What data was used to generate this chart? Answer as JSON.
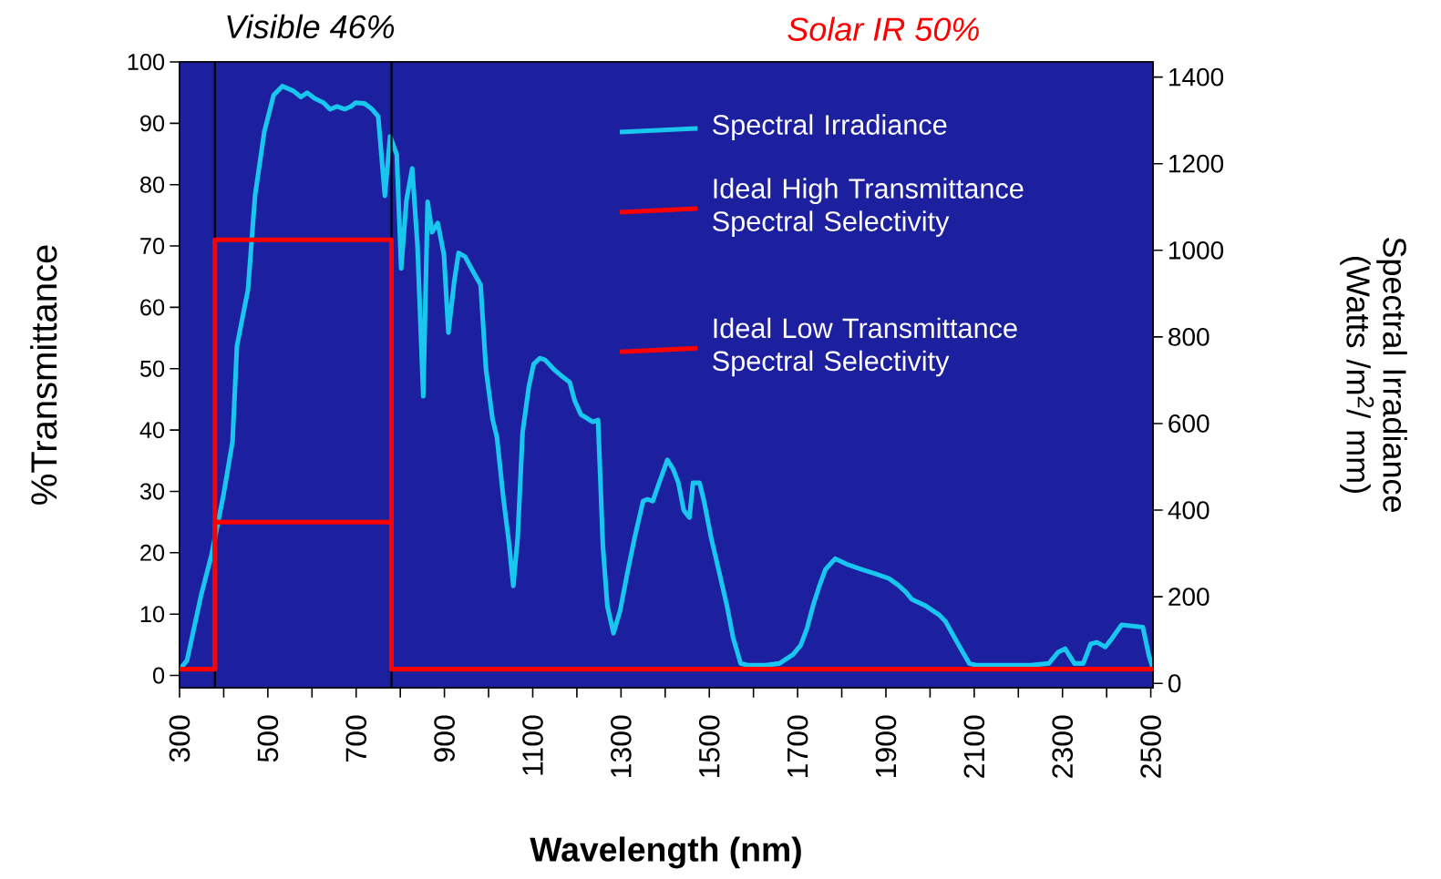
{
  "chart_data": {
    "type": "line",
    "xlabel": "Wavelength (nm)",
    "ylabel": "%Transmittance",
    "y2label": "Spectral Irradiance (Watts /m$^{2}$/ mm)",
    "annotations": [
      "Visible 46%",
      "Solar IR 50%"
    ],
    "xlim": [
      300,
      2505
    ],
    "ylim": [
      -2,
      100
    ],
    "y2lim": [
      -10,
      1435
    ],
    "xticks": [
      300,
      {
        "value": 400,
        "label": null
      },
      500,
      {
        "value": 600,
        "label": null
      },
      700,
      {
        "value": 800,
        "label": null
      },
      900,
      {
        "value": 1000,
        "label": null
      },
      1100,
      {
        "value": 1200,
        "label": null
      },
      1300,
      {
        "value": 1400,
        "label": null
      },
      1500,
      {
        "value": 1600,
        "label": null
      },
      1700,
      {
        "value": 1800,
        "label": null
      },
      1900,
      {
        "value": 2000,
        "label": null
      },
      2100,
      {
        "value": 2200,
        "label": null
      },
      2300,
      {
        "value": 2400,
        "label": null
      },
      2500
    ],
    "yticks": [
      0,
      10,
      20,
      30,
      40,
      50,
      60,
      70,
      80,
      90,
      100
    ],
    "y2ticks": [
      0,
      200,
      400,
      600,
      800,
      1000,
      1200,
      1400
    ],
    "legend": "top right",
    "ref_lines": [
      {
        "axis": "x",
        "value": 380,
        "color": "#000000"
      },
      {
        "axis": "x",
        "value": 780,
        "color": "#000000"
      }
    ],
    "series": [
      {
        "name": "Spectral Irradiance",
        "color": "#19c6ee",
        "axis": "y2",
        "x": [
          300,
          317,
          348,
          372,
          399,
          420,
          430,
          455,
          471,
          492,
          513,
          533,
          558,
          575,
          589,
          606,
          626,
          641,
          657,
          674,
          688,
          699,
          719,
          736,
          750,
          765,
          777,
          792,
          802,
          814,
          827,
          839,
          852,
          862,
          872,
          885,
          899,
          909,
          922,
          932,
          947,
          967,
          982,
          994,
          1009,
          1019,
          1033,
          1046,
          1056,
          1066,
          1077,
          1091,
          1102,
          1116,
          1128,
          1147,
          1164,
          1184,
          1195,
          1209,
          1226,
          1236,
          1248,
          1259,
          1269,
          1283,
          1298,
          1314,
          1331,
          1350,
          1360,
          1372,
          1385,
          1405,
          1418,
          1430,
          1442,
          1455,
          1463,
          1478,
          1488,
          1504,
          1521,
          1540,
          1554,
          1571,
          1587,
          1628,
          1659,
          1690,
          1707,
          1721,
          1736,
          1748,
          1763,
          1785,
          1814,
          1845,
          1876,
          1907,
          1928,
          1945,
          1959,
          1990,
          2021,
          2035,
          2052,
          2073,
          2089,
          2104,
          2228,
          2269,
          2290,
          2306,
          2327,
          2347,
          2364,
          2378,
          2397,
          2413,
          2434,
          2482,
          2496,
          2504
        ],
        "values": [
          32,
          53,
          200,
          295,
          432,
          558,
          779,
          909,
          1126,
          1274,
          1358,
          1379,
          1368,
          1354,
          1364,
          1351,
          1341,
          1326,
          1332,
          1326,
          1332,
          1341,
          1339,
          1326,
          1309,
          1126,
          1263,
          1221,
          958,
          1116,
          1189,
          1010,
          663,
          1112,
          1042,
          1063,
          989,
          810,
          926,
          994,
          985,
          947,
          920,
          726,
          610,
          568,
          432,
          326,
          225,
          337,
          579,
          684,
          737,
          751,
          747,
          726,
          711,
          695,
          653,
          621,
          610,
          604,
          608,
          316,
          179,
          116,
          168,
          253,
          337,
          421,
          425,
          421,
          459,
          516,
          495,
          463,
          400,
          383,
          463,
          463,
          421,
          337,
          263,
          179,
          105,
          46,
          42,
          42,
          46,
          67,
          88,
          126,
          183,
          221,
          263,
          288,
          274,
          263,
          253,
          242,
          227,
          211,
          194,
          179,
          158,
          143,
          112,
          74,
          46,
          42,
          42,
          46,
          72,
          80,
          46,
          46,
          91,
          95,
          84,
          105,
          135,
          130,
          63,
          38
        ]
      },
      {
        "name": "Ideal High Transmittance Spectral Selectivity",
        "color": "#ff0000",
        "x": [
          300,
          380,
          380,
          780,
          780,
          2505
        ],
        "values": [
          1,
          1,
          71,
          71,
          1,
          1
        ]
      },
      {
        "name": "Ideal Low Transmittance Spectral Selectivity",
        "color": "#ff0000",
        "x": [
          300,
          380,
          380,
          780,
          780,
          2505
        ],
        "values": [
          1,
          1,
          25,
          25,
          1,
          1
        ]
      }
    ]
  }
}
